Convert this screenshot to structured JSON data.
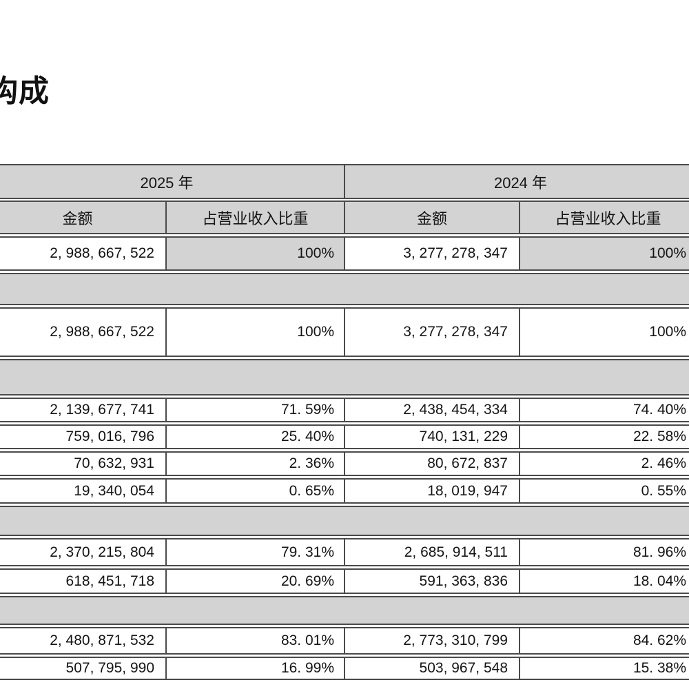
{
  "heading": {
    "title": "构成"
  },
  "colors": {
    "band_gray": "#d3d3d3",
    "border": "#4a4a4a",
    "text": "#141414"
  },
  "table": {
    "year_headers": [
      "2025 年",
      "2024 年"
    ],
    "col_headers": [
      "金额",
      "占营业收入比重",
      "金额",
      "占营业收入比重"
    ],
    "rows": [
      {
        "c1": "2, 988, 667, 522",
        "c2": "100%",
        "c3": "3, 277, 278, 347",
        "c4": "100%"
      },
      {
        "c1": "2, 988, 667, 522",
        "c2": "100%",
        "c3": "3, 277, 278, 347",
        "c4": "100%"
      },
      {
        "c1": "2, 139, 677, 741",
        "c2": "71. 59%",
        "c3": "2, 438, 454, 334",
        "c4": "74. 40%"
      },
      {
        "c1": "759, 016, 796",
        "c2": "25. 40%",
        "c3": "740, 131, 229",
        "c4": "22. 58%"
      },
      {
        "c1": "70, 632, 931",
        "c2": "2. 36%",
        "c3": "80, 672, 837",
        "c4": "2. 46%"
      },
      {
        "c1": "19, 340, 054",
        "c2": "0. 65%",
        "c3": "18, 019, 947",
        "c4": "0. 55%"
      },
      {
        "c1": "2, 370, 215, 804",
        "c2": "79. 31%",
        "c3": "2, 685, 914, 511",
        "c4": "81. 96%"
      },
      {
        "c1": "618, 451, 718",
        "c2": "20. 69%",
        "c3": "591, 363, 836",
        "c4": "18. 04%"
      },
      {
        "c1": "2, 480, 871, 532",
        "c2": "83. 01%",
        "c3": "2, 773, 310, 799",
        "c4": "84. 62%"
      },
      {
        "c1": "507, 795, 990",
        "c2": "16. 99%",
        "c3": "503, 967, 548",
        "c4": "15. 38%"
      }
    ]
  }
}
